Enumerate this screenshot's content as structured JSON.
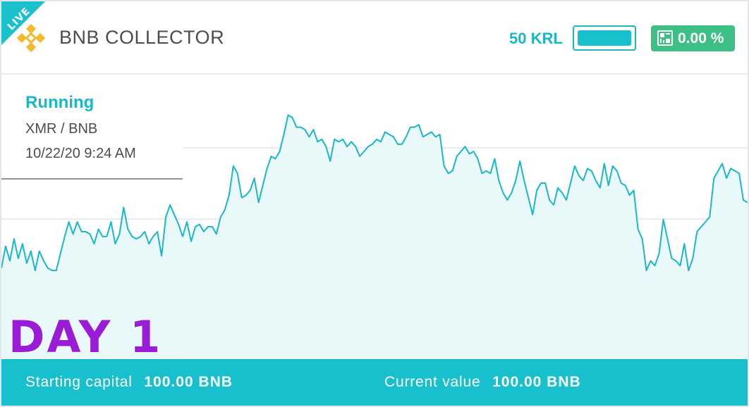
{
  "ribbon": {
    "label": "LIVE"
  },
  "header": {
    "title": "BNB COLLECTOR",
    "logo_icon": "binance-logo",
    "amount": "50 KRL",
    "level": 1.0,
    "percent_icon": "qr-code-icon",
    "percent": "0.00 %"
  },
  "status": {
    "state": "Running",
    "pair": "XMR / BNB",
    "timestamp": "10/22/20 9:24 AM"
  },
  "day_label": "DAY 1",
  "footer": {
    "starting_label": "Starting capital",
    "starting_value": "100.00 BNB",
    "current_label": "Current value",
    "current_value": "100.00 BNB"
  },
  "colors": {
    "accent": "#17c0cc",
    "line": "#1ab8c7",
    "area": "#e9f8f9",
    "badge": "#3dc085",
    "day": "#9b1cd6",
    "logo": "#f3ba2f"
  },
  "chart_data": {
    "type": "area",
    "grid": true,
    "values": [
      34,
      43,
      37,
      46,
      38,
      44,
      36,
      41,
      33,
      41,
      37,
      34,
      33,
      33,
      40,
      47,
      53,
      48,
      53,
      49,
      49,
      48,
      44,
      50,
      47,
      47,
      53,
      44,
      48,
      59,
      50,
      47,
      46,
      47,
      49,
      44,
      47,
      49,
      39,
      55,
      60,
      56,
      52,
      47,
      53,
      45,
      51,
      52,
      49,
      51,
      51,
      48,
      55,
      58,
      64,
      76,
      73,
      63,
      64,
      66,
      71,
      61,
      68,
      75,
      80,
      79,
      82,
      89,
      97,
      96,
      92,
      92,
      91,
      88,
      91,
      86,
      87,
      84,
      78,
      87,
      86,
      87,
      84,
      86,
      84,
      80,
      82,
      84,
      85,
      87,
      86,
      90,
      89,
      88,
      85,
      85,
      88,
      92,
      92,
      93,
      88,
      89,
      90,
      88,
      89,
      76,
      73,
      74,
      80,
      82,
      84,
      81,
      82,
      79,
      73,
      74,
      73,
      79,
      70,
      65,
      62,
      65,
      70,
      78,
      70,
      63,
      56,
      66,
      69,
      69,
      62,
      60,
      67,
      65,
      62,
      69,
      76,
      72,
      70,
      75,
      74,
      70,
      67,
      77,
      68,
      76,
      74,
      69,
      68,
      64,
      66,
      50,
      46,
      33,
      37,
      35,
      40,
      54,
      46,
      38,
      37,
      35,
      44,
      33,
      38,
      49,
      51,
      53,
      55,
      71,
      74,
      77,
      71,
      75,
      74,
      73,
      62,
      61
    ]
  }
}
